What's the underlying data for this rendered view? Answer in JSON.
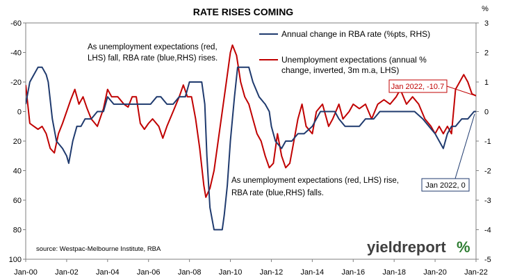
{
  "chart_data": {
    "type": "line",
    "title": "RATE RISES COMING",
    "x_range": [
      "Jan-00",
      "Jan-22"
    ],
    "x_ticks": [
      "Jan-00",
      "Jan-02",
      "Jan-04",
      "Jan-06",
      "Jan-08",
      "Jan-10",
      "Jan-12",
      "Jan-14",
      "Jan-16",
      "Jan-18",
      "Jan-20",
      "Jan-22"
    ],
    "y_left": {
      "min": -60,
      "max": 100,
      "inverted": true,
      "ticks": [
        "-60",
        "-40",
        "-20",
        "0",
        "20",
        "40",
        "60",
        "80",
        "100"
      ]
    },
    "y_right": {
      "min": -5,
      "max": 3,
      "ticks": [
        "3",
        "2",
        "1",
        "0",
        "-1",
        "-2",
        "-3",
        "-4",
        "-5"
      ],
      "unit_label": "%"
    },
    "grid": false,
    "legend_position": "top-right",
    "series": [
      {
        "name": "Annual change in RBA rate (%pts, RHS)",
        "axis": "right",
        "color": "#1f3a6e",
        "points": [
          [
            2000.0,
            0.25
          ],
          [
            2000.2,
            1.0
          ],
          [
            2000.4,
            1.25
          ],
          [
            2000.6,
            1.5
          ],
          [
            2000.8,
            1.5
          ],
          [
            2001.0,
            1.25
          ],
          [
            2001.1,
            1.0
          ],
          [
            2001.3,
            -0.25
          ],
          [
            2001.5,
            -1.0
          ],
          [
            2001.8,
            -1.25
          ],
          [
            2002.0,
            -1.5
          ],
          [
            2002.1,
            -1.75
          ],
          [
            2002.3,
            -1.0
          ],
          [
            2002.5,
            -0.5
          ],
          [
            2002.7,
            -0.5
          ],
          [
            2002.9,
            -0.25
          ],
          [
            2003.2,
            -0.25
          ],
          [
            2003.5,
            0.0
          ],
          [
            2003.8,
            0.0
          ],
          [
            2004.0,
            0.5
          ],
          [
            2004.3,
            0.25
          ],
          [
            2004.6,
            0.25
          ],
          [
            2004.9,
            0.25
          ],
          [
            2005.2,
            0.25
          ],
          [
            2005.5,
            0.25
          ],
          [
            2005.8,
            0.25
          ],
          [
            2006.1,
            0.25
          ],
          [
            2006.4,
            0.5
          ],
          [
            2006.6,
            0.5
          ],
          [
            2006.9,
            0.25
          ],
          [
            2007.2,
            0.25
          ],
          [
            2007.5,
            0.5
          ],
          [
            2007.8,
            0.5
          ],
          [
            2008.0,
            1.0
          ],
          [
            2008.3,
            1.0
          ],
          [
            2008.6,
            1.0
          ],
          [
            2008.75,
            0.25
          ],
          [
            2008.85,
            -1.5
          ],
          [
            2009.0,
            -3.25
          ],
          [
            2009.2,
            -4.0
          ],
          [
            2009.6,
            -4.0
          ],
          [
            2009.7,
            -3.5
          ],
          [
            2009.85,
            -2.5
          ],
          [
            2010.0,
            -1.0
          ],
          [
            2010.2,
            0.5
          ],
          [
            2010.35,
            1.5
          ],
          [
            2010.6,
            1.5
          ],
          [
            2010.9,
            1.5
          ],
          [
            2011.1,
            1.0
          ],
          [
            2011.4,
            0.5
          ],
          [
            2011.7,
            0.25
          ],
          [
            2011.9,
            0.0
          ],
          [
            2012.0,
            -0.5
          ],
          [
            2012.2,
            -1.0
          ],
          [
            2012.5,
            -1.25
          ],
          [
            2012.7,
            -1.0
          ],
          [
            2013.0,
            -1.0
          ],
          [
            2013.3,
            -0.75
          ],
          [
            2013.6,
            -0.75
          ],
          [
            2014.0,
            -0.5
          ],
          [
            2014.4,
            0.0
          ],
          [
            2014.8,
            0.0
          ],
          [
            2015.1,
            0.0
          ],
          [
            2015.3,
            -0.25
          ],
          [
            2015.6,
            -0.5
          ],
          [
            2016.0,
            -0.5
          ],
          [
            2016.3,
            -0.5
          ],
          [
            2016.6,
            -0.25
          ],
          [
            2017.0,
            -0.25
          ],
          [
            2017.3,
            0.0
          ],
          [
            2017.6,
            0.0
          ],
          [
            2018.0,
            0.0
          ],
          [
            2018.5,
            0.0
          ],
          [
            2019.0,
            0.0
          ],
          [
            2019.4,
            -0.25
          ],
          [
            2019.7,
            -0.5
          ],
          [
            2020.0,
            -0.75
          ],
          [
            2020.2,
            -1.0
          ],
          [
            2020.4,
            -1.25
          ],
          [
            2020.6,
            -0.75
          ],
          [
            2020.8,
            -0.5
          ],
          [
            2021.0,
            -0.5
          ],
          [
            2021.3,
            -0.25
          ],
          [
            2021.6,
            -0.25
          ],
          [
            2021.9,
            0.0
          ],
          [
            2022.0,
            0.0
          ]
        ]
      },
      {
        "name": "Unemployment expectations (annual % change, inverted, 3m m.a, LHS)",
        "axis": "left",
        "color": "#c00000",
        "points": [
          [
            2000.0,
            -18
          ],
          [
            2000.2,
            8
          ],
          [
            2000.4,
            10
          ],
          [
            2000.6,
            12
          ],
          [
            2000.8,
            10
          ],
          [
            2001.0,
            15
          ],
          [
            2001.2,
            25
          ],
          [
            2001.4,
            28
          ],
          [
            2001.6,
            15
          ],
          [
            2001.8,
            8
          ],
          [
            2002.0,
            0
          ],
          [
            2002.2,
            -8
          ],
          [
            2002.4,
            -15
          ],
          [
            2002.6,
            -5
          ],
          [
            2002.8,
            -10
          ],
          [
            2003.0,
            -2
          ],
          [
            2003.2,
            5
          ],
          [
            2003.5,
            10
          ],
          [
            2003.8,
            -2
          ],
          [
            2004.0,
            -15
          ],
          [
            2004.2,
            -10
          ],
          [
            2004.5,
            -10
          ],
          [
            2004.8,
            -5
          ],
          [
            2005.0,
            -3
          ],
          [
            2005.2,
            -10
          ],
          [
            2005.4,
            -10
          ],
          [
            2005.6,
            8
          ],
          [
            2005.8,
            12
          ],
          [
            2006.0,
            8
          ],
          [
            2006.2,
            5
          ],
          [
            2006.5,
            10
          ],
          [
            2006.7,
            18
          ],
          [
            2006.9,
            10
          ],
          [
            2007.2,
            0
          ],
          [
            2007.5,
            -10
          ],
          [
            2007.7,
            -18
          ],
          [
            2007.9,
            -10
          ],
          [
            2008.1,
            -10
          ],
          [
            2008.3,
            5
          ],
          [
            2008.5,
            25
          ],
          [
            2008.7,
            50
          ],
          [
            2008.8,
            58
          ],
          [
            2009.0,
            52
          ],
          [
            2009.2,
            40
          ],
          [
            2009.4,
            20
          ],
          [
            2009.6,
            0
          ],
          [
            2009.8,
            -20
          ],
          [
            2010.0,
            -40
          ],
          [
            2010.1,
            -45
          ],
          [
            2010.3,
            -38
          ],
          [
            2010.5,
            -20
          ],
          [
            2010.7,
            -10
          ],
          [
            2010.9,
            -5
          ],
          [
            2011.1,
            5
          ],
          [
            2011.3,
            15
          ],
          [
            2011.5,
            20
          ],
          [
            2011.7,
            30
          ],
          [
            2011.9,
            38
          ],
          [
            2012.1,
            35
          ],
          [
            2012.3,
            15
          ],
          [
            2012.5,
            30
          ],
          [
            2012.7,
            38
          ],
          [
            2012.9,
            35
          ],
          [
            2013.1,
            20
          ],
          [
            2013.3,
            5
          ],
          [
            2013.5,
            -5
          ],
          [
            2013.7,
            10
          ],
          [
            2014.0,
            15
          ],
          [
            2014.2,
            0
          ],
          [
            2014.5,
            -5
          ],
          [
            2014.8,
            10
          ],
          [
            2015.0,
            5
          ],
          [
            2015.3,
            -5
          ],
          [
            2015.5,
            5
          ],
          [
            2015.8,
            0
          ],
          [
            2016.0,
            -5
          ],
          [
            2016.3,
            -2
          ],
          [
            2016.6,
            -5
          ],
          [
            2016.9,
            5
          ],
          [
            2017.2,
            -5
          ],
          [
            2017.5,
            -8
          ],
          [
            2017.8,
            -5
          ],
          [
            2018.1,
            -10
          ],
          [
            2018.3,
            -15
          ],
          [
            2018.6,
            -5
          ],
          [
            2018.9,
            -10
          ],
          [
            2019.2,
            -5
          ],
          [
            2019.5,
            5
          ],
          [
            2019.8,
            10
          ],
          [
            2020.0,
            15
          ],
          [
            2020.2,
            10
          ],
          [
            2020.4,
            15
          ],
          [
            2020.6,
            10
          ],
          [
            2020.8,
            15
          ],
          [
            2021.0,
            -15
          ],
          [
            2021.2,
            -20
          ],
          [
            2021.4,
            -25
          ],
          [
            2021.6,
            -20
          ],
          [
            2021.8,
            -12
          ],
          [
            2022.0,
            -10.7
          ]
        ]
      }
    ],
    "annotations": {
      "top_note": [
        "As unemployment expectations (red,",
        "LHS) fall, RBA rate (blue,RHS) rises."
      ],
      "bottom_note": [
        "As unemployment expectations (red, LHS) rise,",
        "RBA rate (blue,RHS) falls."
      ],
      "red_callout": "Jan 2022, -10.7",
      "blue_callout": "Jan 2022, 0",
      "source": "source: Westpac-Melbourne Institute, RBA"
    }
  },
  "brand": {
    "text_main": "yieldreport",
    "text_symbol": "%"
  }
}
